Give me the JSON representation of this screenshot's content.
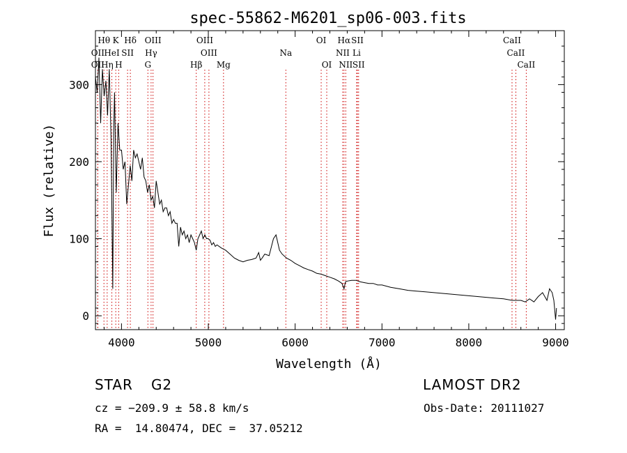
{
  "chart_data": {
    "type": "line",
    "title": "spec-55862-M6201_sp06-003.fits",
    "xlabel": "Wavelength (Å)",
    "ylabel": "Flux (relative)",
    "xlim": [
      3700,
      9100
    ],
    "ylim": [
      -18,
      370
    ],
    "xticks": [
      4000,
      5000,
      6000,
      7000,
      8000,
      9000
    ],
    "yticks": [
      0,
      100,
      200,
      300
    ],
    "series": [
      {
        "x": [
          3700,
          3720,
          3740,
          3760,
          3780,
          3800,
          3820,
          3840,
          3860,
          3880,
          3900,
          3910,
          3920,
          3940,
          3960,
          3980,
          4000,
          4020,
          4040,
          4060,
          4080,
          4100,
          4120,
          4140,
          4160,
          4180,
          4200,
          4220,
          4240,
          4260,
          4280,
          4300,
          4320,
          4340,
          4360,
          4380,
          4400,
          4420,
          4440,
          4460,
          4480,
          4500,
          4520,
          4540,
          4560,
          4580,
          4600,
          4620,
          4640,
          4660,
          4680,
          4700,
          4720,
          4740,
          4760,
          4780,
          4800,
          4820,
          4840,
          4861,
          4880,
          4900,
          4920,
          4940,
          4960,
          4980,
          5000,
          5020,
          5040,
          5060,
          5080,
          5100,
          5150,
          5200,
          5250,
          5300,
          5350,
          5400,
          5450,
          5500,
          5550,
          5580,
          5600,
          5620,
          5650,
          5700,
          5750,
          5780,
          5800,
          5820,
          5850,
          5900,
          5950,
          6000,
          6050,
          6100,
          6150,
          6200,
          6250,
          6300,
          6350,
          6400,
          6450,
          6500,
          6540,
          6563,
          6580,
          6600,
          6650,
          6700,
          6750,
          6800,
          6850,
          6900,
          6950,
          7000,
          7100,
          7200,
          7300,
          7400,
          7500,
          7600,
          7700,
          7800,
          7900,
          8000,
          8100,
          8200,
          8300,
          8400,
          8500,
          8600,
          8650,
          8700,
          8750,
          8800,
          8850,
          8900,
          8930,
          8960,
          8980,
          9000,
          9010
        ],
        "y": [
          310,
          290,
          335,
          250,
          320,
          285,
          305,
          260,
          320,
          230,
          35,
          240,
          290,
          160,
          250,
          215,
          215,
          190,
          200,
          145,
          170,
          195,
          175,
          215,
          205,
          210,
          200,
          190,
          205,
          180,
          175,
          160,
          170,
          150,
          155,
          140,
          175,
          160,
          145,
          150,
          135,
          140,
          140,
          130,
          135,
          120,
          125,
          120,
          120,
          90,
          115,
          105,
          110,
          100,
          105,
          95,
          105,
          100,
          95,
          85,
          100,
          105,
          110,
          100,
          105,
          100,
          100,
          98,
          92,
          95,
          90,
          92,
          88,
          85,
          80,
          75,
          72,
          70,
          72,
          73,
          75,
          82,
          72,
          75,
          80,
          78,
          100,
          105,
          95,
          85,
          80,
          75,
          72,
          68,
          65,
          62,
          60,
          58,
          55,
          54,
          52,
          50,
          48,
          45,
          42,
          35,
          44,
          45,
          46,
          46,
          44,
          43,
          42,
          42,
          40,
          40,
          37,
          35,
          33,
          32,
          31,
          30,
          29,
          28,
          27,
          26,
          25,
          24,
          23,
          22,
          20,
          20,
          18,
          22,
          18,
          25,
          30,
          20,
          35,
          30,
          20,
          -5,
          10
        ]
      }
    ],
    "annotations": [
      {
        "label": "Hθ",
        "x": 3798,
        "row": 1
      },
      {
        "label": "K",
        "x": 3934,
        "row": 1
      },
      {
        "label": "Hδ",
        "x": 4102,
        "row": 1
      },
      {
        "label": "OIII",
        "x": 4363,
        "row": 1
      },
      {
        "label": "OIII",
        "x": 4959,
        "row": 1
      },
      {
        "label": "OI",
        "x": 6300,
        "row": 1
      },
      {
        "label": "Hα",
        "x": 6563,
        "row": 1
      },
      {
        "label": "SII",
        "x": 6717,
        "row": 1
      },
      {
        "label": "CaII",
        "x": 8498,
        "row": 1
      },
      {
        "label": "OII",
        "x": 3727,
        "row": 2
      },
      {
        "label": "HeI",
        "x": 3889,
        "row": 2
      },
      {
        "label": "SII",
        "x": 4070,
        "row": 2
      },
      {
        "label": "Hγ",
        "x": 4341,
        "row": 2
      },
      {
        "label": "OIII",
        "x": 5007,
        "row": 2
      },
      {
        "label": "Na",
        "x": 5893,
        "row": 2
      },
      {
        "label": "NII",
        "x": 6548,
        "row": 2
      },
      {
        "label": "Li",
        "x": 6708,
        "row": 2
      },
      {
        "label": "CaII",
        "x": 8542,
        "row": 2
      },
      {
        "label": "OII",
        "x": 3727,
        "row": 3
      },
      {
        "label": "Hη",
        "x": 3835,
        "row": 3
      },
      {
        "label": "H",
        "x": 3968,
        "row": 3
      },
      {
        "label": "G",
        "x": 4304,
        "row": 3
      },
      {
        "label": "Hβ",
        "x": 4861,
        "row": 3
      },
      {
        "label": "Mg",
        "x": 5175,
        "row": 3
      },
      {
        "label": "OI",
        "x": 6364,
        "row": 3
      },
      {
        "label": "NII",
        "x": 6583,
        "row": 3
      },
      {
        "label": "SII",
        "x": 6731,
        "row": 3
      },
      {
        "label": "CaII",
        "x": 8662,
        "row": 3
      }
    ],
    "line_color": "#000000",
    "marker_color": "#cc0000",
    "grid": false
  },
  "info": {
    "class": "STAR",
    "subclass": "G2",
    "survey": "LAMOST DR2",
    "cz": "cz = −209.9 ± 58.8 km/s",
    "obs_date": "Obs-Date: 20111027",
    "radec": "RA =  14.80474, DEC =  37.05212"
  }
}
